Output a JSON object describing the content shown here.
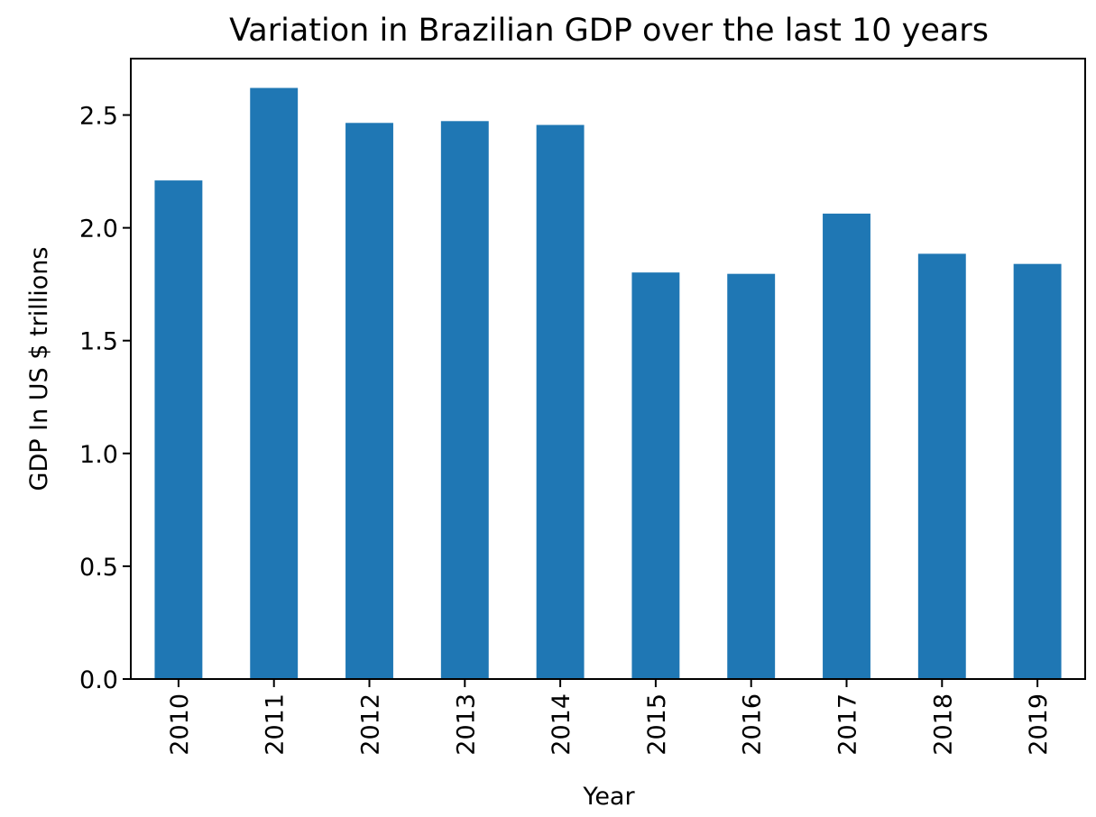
{
  "chart_data": {
    "type": "bar",
    "title": "Variation in Brazilian GDP over the last 10 years",
    "xlabel": "Year",
    "ylabel": "GDP In US $ trillions",
    "categories": [
      "2010",
      "2011",
      "2012",
      "2013",
      "2014",
      "2015",
      "2016",
      "2017",
      "2018",
      "2019"
    ],
    "values": [
      2.21,
      2.62,
      2.465,
      2.473,
      2.456,
      1.802,
      1.796,
      2.063,
      1.885,
      1.84
    ],
    "ylim": [
      0,
      2.75
    ],
    "yticks": [
      0.0,
      0.5,
      1.0,
      1.5,
      2.0,
      2.5
    ],
    "ytick_labels": [
      "0.0",
      "0.5",
      "1.0",
      "1.5",
      "2.0",
      "2.5"
    ],
    "grid": false,
    "legend": "none",
    "bar_color": "#1f77b4"
  }
}
